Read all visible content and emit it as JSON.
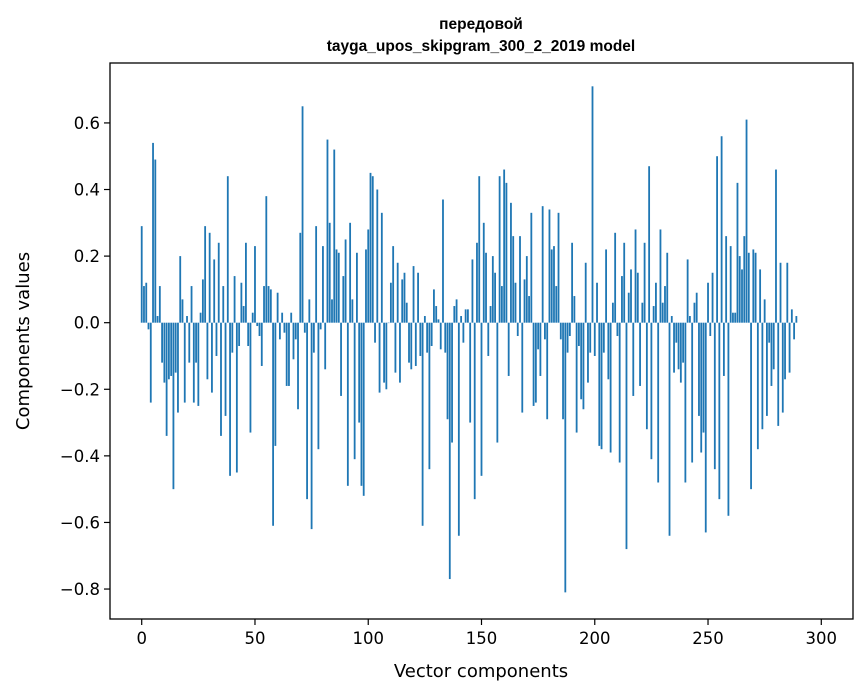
{
  "chart_data": {
    "type": "bar",
    "title": [
      "передовой",
      "tayga_upos_skipgram_300_2_2019 model"
    ],
    "xlabel": "Vector components",
    "ylabel": "Components values",
    "xlim": [
      -14,
      314
    ],
    "ylim": [
      -0.89,
      0.78
    ],
    "xticks": [
      0,
      50,
      100,
      150,
      200,
      250,
      300
    ],
    "xtick_labels": [
      "0",
      "50",
      "100",
      "150",
      "200",
      "250",
      "300"
    ],
    "yticks": [
      -0.8,
      -0.6,
      -0.4,
      -0.2,
      0.0,
      0.2,
      0.4,
      0.6
    ],
    "ytick_labels": [
      "−0.8",
      "−0.6",
      "−0.4",
      "−0.2",
      "0.0",
      "0.2",
      "0.4",
      "0.6"
    ],
    "bar_color": "#1f77b4",
    "x_start": 0,
    "values": [
      0.29,
      0.11,
      0.12,
      -0.02,
      -0.24,
      0.54,
      0.49,
      0.02,
      0.11,
      -0.12,
      -0.18,
      -0.34,
      -0.17,
      -0.16,
      -0.5,
      -0.15,
      -0.27,
      0.2,
      0.07,
      -0.24,
      0.02,
      -0.12,
      0.11,
      -0.24,
      -0.12,
      -0.25,
      0.03,
      0.13,
      0.29,
      -0.17,
      0.27,
      -0.21,
      0.19,
      -0.1,
      0.24,
      -0.34,
      0.11,
      -0.28,
      0.44,
      -0.46,
      -0.09,
      0.14,
      -0.45,
      -0.07,
      0.12,
      0.05,
      0.24,
      -0.07,
      -0.33,
      0.03,
      0.23,
      -0.01,
      -0.04,
      -0.13,
      0.11,
      0.38,
      0.11,
      0.1,
      -0.61,
      -0.37,
      0.09,
      -0.05,
      0.03,
      -0.03,
      -0.19,
      -0.19,
      0.03,
      -0.11,
      -0.05,
      -0.26,
      0.27,
      0.65,
      -0.03,
      -0.53,
      0.07,
      -0.62,
      -0.09,
      0.29,
      -0.38,
      -0.02,
      0.23,
      -0.14,
      0.55,
      0.3,
      0.07,
      0.52,
      0.22,
      0.21,
      -0.22,
      0.14,
      0.25,
      -0.49,
      0.3,
      0.07,
      -0.41,
      0.21,
      -0.3,
      -0.49,
      -0.52,
      0.22,
      0.28,
      0.45,
      0.44,
      -0.06,
      0.4,
      -0.21,
      0.33,
      -0.18,
      -0.2,
      0.0,
      0.12,
      0.23,
      -0.15,
      0.18,
      -0.18,
      0.13,
      0.15,
      0.06,
      -0.12,
      -0.14,
      0.17,
      -0.13,
      0.15,
      -0.1,
      -0.61,
      0.02,
      -0.09,
      -0.44,
      -0.07,
      0.1,
      0.05,
      0.01,
      -0.08,
      0.37,
      -0.09,
      -0.29,
      -0.77,
      -0.36,
      0.05,
      0.07,
      -0.64,
      0.02,
      -0.06,
      0.04,
      0.04,
      -0.3,
      0.19,
      -0.53,
      0.24,
      0.44,
      -0.46,
      0.3,
      0.21,
      -0.1,
      0.05,
      0.2,
      0.15,
      -0.36,
      0.44,
      0.11,
      0.46,
      0.42,
      -0.16,
      0.36,
      0.26,
      0.12,
      -0.04,
      0.26,
      -0.27,
      0.13,
      0.2,
      0.08,
      0.33,
      -0.25,
      -0.24,
      -0.08,
      -0.16,
      0.35,
      -0.05,
      -0.29,
      0.34,
      0.22,
      0.23,
      0.11,
      0.33,
      -0.05,
      -0.29,
      -0.81,
      -0.09,
      -0.04,
      0.24,
      0.08,
      -0.33,
      -0.07,
      -0.23,
      -0.26,
      0.18,
      -0.18,
      -0.09,
      0.71,
      -0.1,
      0.12,
      -0.37,
      -0.38,
      -0.09,
      0.22,
      -0.17,
      -0.39,
      0.06,
      0.27,
      -0.04,
      -0.42,
      0.14,
      0.24,
      -0.68,
      0.09,
      0.16,
      -0.22,
      0.28,
      0.15,
      -0.19,
      0.06,
      0.24,
      -0.32,
      0.47,
      -0.41,
      0.05,
      0.12,
      -0.48,
      0.28,
      0.06,
      0.11,
      0.21,
      -0.64,
      0.02,
      -0.15,
      -0.06,
      -0.14,
      -0.18,
      -0.12,
      -0.48,
      0.19,
      0.02,
      -0.42,
      0.06,
      0.09,
      -0.28,
      -0.39,
      -0.33,
      -0.63,
      0.12,
      -0.04,
      0.15,
      -0.44,
      0.5,
      -0.53,
      0.56,
      -0.16,
      0.26,
      -0.58,
      0.23,
      0.03,
      0.03,
      0.42,
      0.2,
      0.16,
      0.26,
      0.61,
      0.21,
      -0.5,
      0.22,
      0.21,
      -0.38,
      0.16,
      -0.32,
      0.07,
      -0.28,
      -0.06,
      -0.19,
      -0.14,
      0.46,
      -0.31,
      0.18,
      -0.27,
      -0.17,
      0.18,
      -0.15,
      0.04,
      -0.05,
      0.02
    ]
  }
}
